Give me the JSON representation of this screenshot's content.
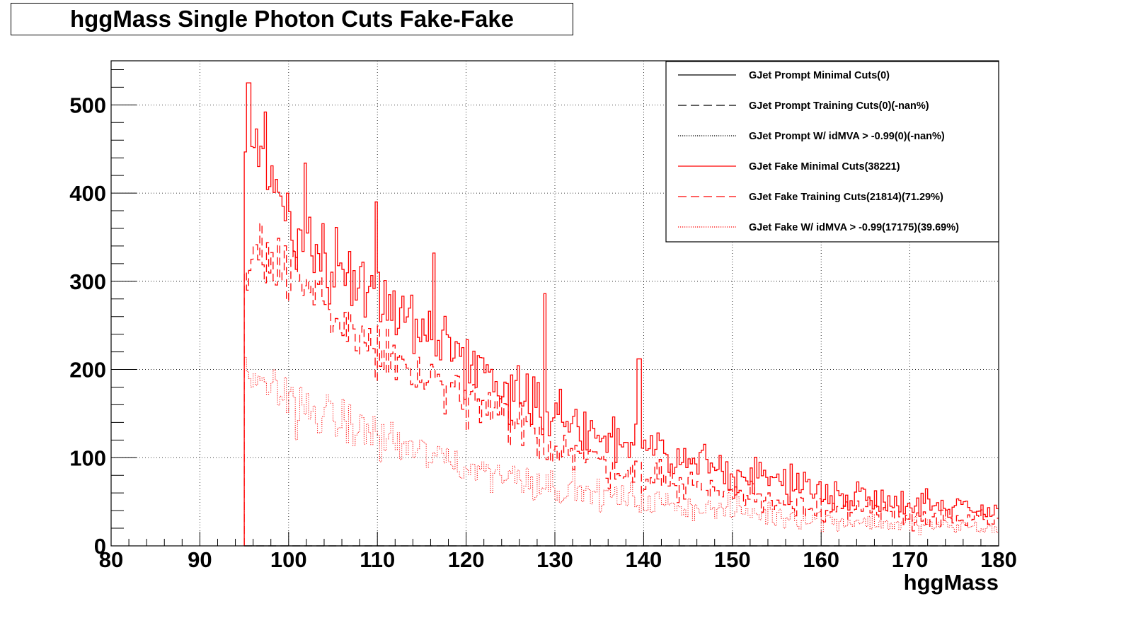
{
  "chart_data": {
    "type": "line",
    "title": "hggMass Single Photon Cuts Fake-Fake",
    "xlabel": "hggMass",
    "ylabel": "",
    "xlim": [
      80,
      180
    ],
    "ylim": [
      0,
      550
    ],
    "grid": true,
    "legend_position": "top-right",
    "x_ticks": [
      80,
      90,
      100,
      110,
      120,
      130,
      140,
      150,
      160,
      170,
      180
    ],
    "y_ticks": [
      0,
      100,
      200,
      300,
      400,
      500
    ],
    "binning": {
      "start": 95,
      "end": 180,
      "bin_width": 0.25
    },
    "series": [
      {
        "name": "GJet Prompt Minimal Cuts(0)",
        "color": "#000000",
        "dash": "solid",
        "anchors": [
          [
            95,
            0
          ],
          [
            180,
            0
          ]
        ]
      },
      {
        "name": "GJet Prompt Training Cuts(0)(-nan%)",
        "color": "#000000",
        "dash": "dashed",
        "anchors": [
          [
            95,
            0
          ],
          [
            180,
            0
          ]
        ]
      },
      {
        "name": "GJet Prompt W/ idMVA > -0.99(0)(-nan%)",
        "color": "#000000",
        "dash": "dotted",
        "anchors": [
          [
            95,
            0
          ],
          [
            180,
            0
          ]
        ]
      },
      {
        "name": "GJet Fake Minimal Cuts(38221)",
        "color": "#ff0000",
        "dash": "solid",
        "anchors": [
          [
            95,
            410
          ],
          [
            96,
            470
          ],
          [
            97,
            430
          ],
          [
            98,
            420
          ],
          [
            100,
            375
          ],
          [
            102,
            350
          ],
          [
            105,
            320
          ],
          [
            108,
            300
          ],
          [
            110,
            290
          ],
          [
            113,
            260
          ],
          [
            116,
            240
          ],
          [
            120,
            210
          ],
          [
            125,
            180
          ],
          [
            130,
            150
          ],
          [
            135,
            125
          ],
          [
            140,
            110
          ],
          [
            145,
            95
          ],
          [
            150,
            85
          ],
          [
            155,
            75
          ],
          [
            160,
            62
          ],
          [
            165,
            55
          ],
          [
            170,
            50
          ],
          [
            175,
            45
          ],
          [
            180,
            40
          ]
        ],
        "peaks": [
          [
            95.5,
            525
          ],
          [
            97.3,
            492
          ],
          [
            101.8,
            434
          ],
          [
            109.8,
            390
          ],
          [
            116.3,
            332
          ],
          [
            128.8,
            286
          ],
          [
            139.5,
            212
          ]
        ]
      },
      {
        "name": "GJet Fake Training Cuts(21814)(71.29%)",
        "color": "#ff0000",
        "dash": "dashed",
        "anchors": [
          [
            95,
            330
          ],
          [
            97,
            330
          ],
          [
            100,
            300
          ],
          [
            103,
            280
          ],
          [
            106,
            255
          ],
          [
            110,
            220
          ],
          [
            115,
            190
          ],
          [
            120,
            165
          ],
          [
            125,
            140
          ],
          [
            130,
            115
          ],
          [
            135,
            95
          ],
          [
            140,
            80
          ],
          [
            145,
            70
          ],
          [
            150,
            60
          ],
          [
            155,
            52
          ],
          [
            160,
            45
          ],
          [
            165,
            38
          ],
          [
            170,
            34
          ],
          [
            175,
            30
          ],
          [
            180,
            27
          ]
        ]
      },
      {
        "name": "GJet Fake W/ idMVA > -0.99(17175)(39.69%)",
        "color": "#ff0000",
        "dash": "dotted",
        "anchors": [
          [
            95,
            190
          ],
          [
            97,
            185
          ],
          [
            100,
            170
          ],
          [
            103,
            150
          ],
          [
            106,
            140
          ],
          [
            110,
            125
          ],
          [
            115,
            105
          ],
          [
            120,
            90
          ],
          [
            125,
            80
          ],
          [
            130,
            68
          ],
          [
            135,
            58
          ],
          [
            140,
            50
          ],
          [
            145,
            45
          ],
          [
            150,
            40
          ],
          [
            155,
            35
          ],
          [
            160,
            30
          ],
          [
            165,
            27
          ],
          [
            170,
            24
          ],
          [
            175,
            22
          ],
          [
            180,
            20
          ]
        ]
      }
    ]
  }
}
